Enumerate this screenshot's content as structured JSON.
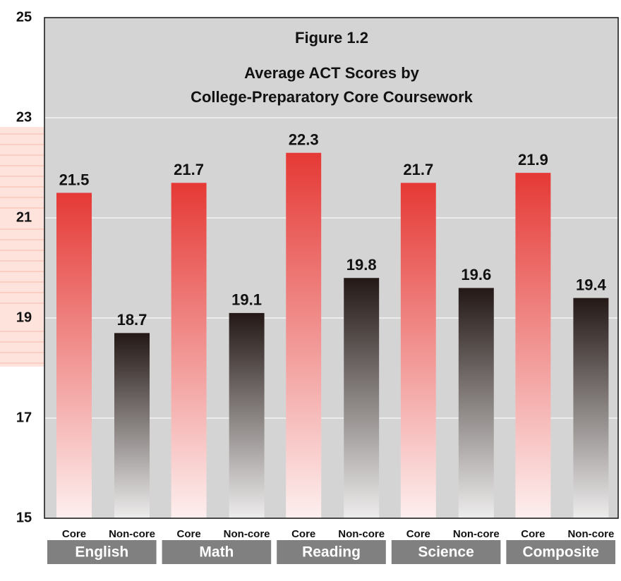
{
  "chart_data": {
    "type": "bar",
    "title": "Figure 1.2",
    "subtitle": [
      "Average ACT Scores by",
      "College-Preparatory Core Coursework"
    ],
    "categories": [
      "English",
      "Math",
      "Reading",
      "Science",
      "Composite"
    ],
    "series": [
      {
        "name": "Core",
        "color": "#e53935",
        "values": [
          21.5,
          21.7,
          22.3,
          21.7,
          21.9
        ]
      },
      {
        "name": "Non-core",
        "color": "#231815",
        "values": [
          18.7,
          19.1,
          19.8,
          19.6,
          19.4
        ]
      }
    ],
    "ylim": [
      15,
      25
    ],
    "yticks": [
      15,
      17,
      19,
      21,
      23,
      25
    ],
    "grid": true
  }
}
